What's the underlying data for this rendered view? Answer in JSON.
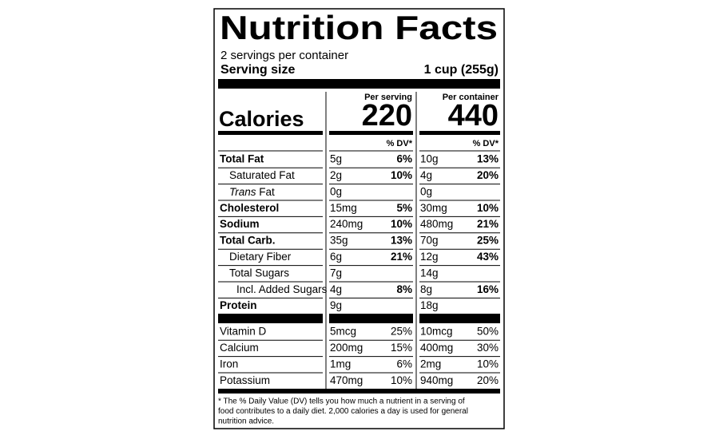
{
  "header": {
    "title": "Nutrition Facts",
    "servings": "2 servings per container",
    "serving_size_label": "Serving size",
    "serving_size": "1 cup (255g)"
  },
  "calories_label": "Calories",
  "columns": [
    {
      "heading": "Per serving",
      "calories": "220",
      "dv_heading": "% DV*"
    },
    {
      "heading": "Per container",
      "calories": "440",
      "dv_heading": "% DV*"
    }
  ],
  "nutrients": [
    {
      "label": "Total Fat",
      "serving": {
        "amount": "5g",
        "dv": "6%"
      },
      "container": {
        "amount": "10g",
        "dv": "13%"
      }
    },
    {
      "label": "Saturated Fat",
      "serving": {
        "amount": "2g",
        "dv": "10%"
      },
      "container": {
        "amount": "4g",
        "dv": "20%"
      }
    },
    {
      "label_italic": "Trans",
      "label": "Fat",
      "serving": {
        "amount": "0g"
      },
      "container": {
        "amount": "0g"
      }
    },
    {
      "label": "Cholesterol",
      "serving": {
        "amount": "15mg",
        "dv": "5%"
      },
      "container": {
        "amount": "30mg",
        "dv": "10%"
      }
    },
    {
      "label": "Sodium",
      "serving": {
        "amount": "240mg",
        "dv": "10%"
      },
      "container": {
        "amount": "480mg",
        "dv": "21%"
      }
    },
    {
      "label": "Total Carb.",
      "serving": {
        "amount": "35g",
        "dv": "13%"
      },
      "container": {
        "amount": "70g",
        "dv": "25%"
      }
    },
    {
      "label": "Dietary Fiber",
      "serving": {
        "amount": "6g",
        "dv": "21%"
      },
      "container": {
        "amount": "12g",
        "dv": "43%"
      }
    },
    {
      "label": "Total Sugars",
      "serving": {
        "amount": "7g"
      },
      "container": {
        "amount": "14g"
      }
    },
    {
      "label": "Incl. Added Sugars",
      "serving": {
        "amount": "4g",
        "dv": "8%"
      },
      "container": {
        "amount": "8g",
        "dv": "16%"
      }
    },
    {
      "label": "Protein",
      "serving": {
        "amount": "9g"
      },
      "container": {
        "amount": "18g"
      }
    }
  ],
  "vitamins": [
    {
      "label": "Vitamin D",
      "serving": {
        "amount": "5mcg",
        "dv": "25%"
      },
      "container": {
        "amount": "10mcg",
        "dv": "50%"
      }
    },
    {
      "label": "Calcium",
      "serving": {
        "amount": "200mg",
        "dv": "15%"
      },
      "container": {
        "amount": "400mg",
        "dv": "30%"
      }
    },
    {
      "label": "Iron",
      "serving": {
        "amount": "1mg",
        "dv": "6%"
      },
      "container": {
        "amount": "2mg",
        "dv": "10%"
      }
    },
    {
      "label": "Potassium",
      "serving": {
        "amount": "470mg",
        "dv": "10%"
      },
      "container": {
        "amount": "940mg",
        "dv": "20%"
      }
    }
  ],
  "footnote": [
    "* The % Daily Value (DV) tells you how much a nutrient in a serving of",
    "food contributes to a daily diet. 2,000 calories a day is used for general",
    "nutrition advice."
  ]
}
